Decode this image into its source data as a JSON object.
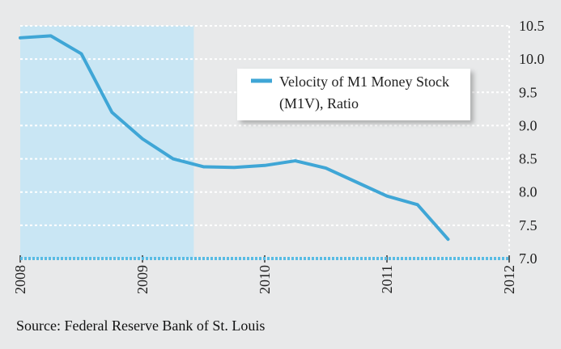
{
  "chart_data": {
    "type": "line",
    "x_ticks": [
      "2008",
      "2009",
      "2010",
      "2011",
      "2012"
    ],
    "y_ticks": [
      7.0,
      7.5,
      8.0,
      8.5,
      9.0,
      9.5,
      10.0,
      10.5
    ],
    "xlim": [
      2008.0,
      2012.0
    ],
    "ylim": [
      7.0,
      10.5
    ],
    "shaded_region": {
      "x_start": 2008.0,
      "x_end": 2009.42
    },
    "series": [
      {
        "name": "Velocity of M1 Money Stock (M1V), Ratio",
        "name_lines": [
          "Velocity of M1 Money Stock",
          "(M1V), Ratio"
        ],
        "color": "#3fa6d6",
        "x": [
          2008.0,
          2008.25,
          2008.5,
          2008.75,
          2009.0,
          2009.25,
          2009.5,
          2009.75,
          2010.0,
          2010.25,
          2010.5,
          2010.75,
          2011.0,
          2011.25,
          2011.5
        ],
        "y": [
          10.32,
          10.35,
          10.08,
          9.2,
          8.8,
          8.5,
          8.38,
          8.37,
          8.4,
          8.47,
          8.36,
          8.15,
          7.94,
          7.81,
          7.29
        ]
      }
    ],
    "legend_placement": "top-right",
    "grid": true,
    "colors": {
      "recession_shade": "#c9e6f4",
      "axis": "#58bce4",
      "grid": "#ffffff",
      "background": "#e8e9ea"
    }
  },
  "source": "Source: Federal Reserve Bank of St. Louis"
}
